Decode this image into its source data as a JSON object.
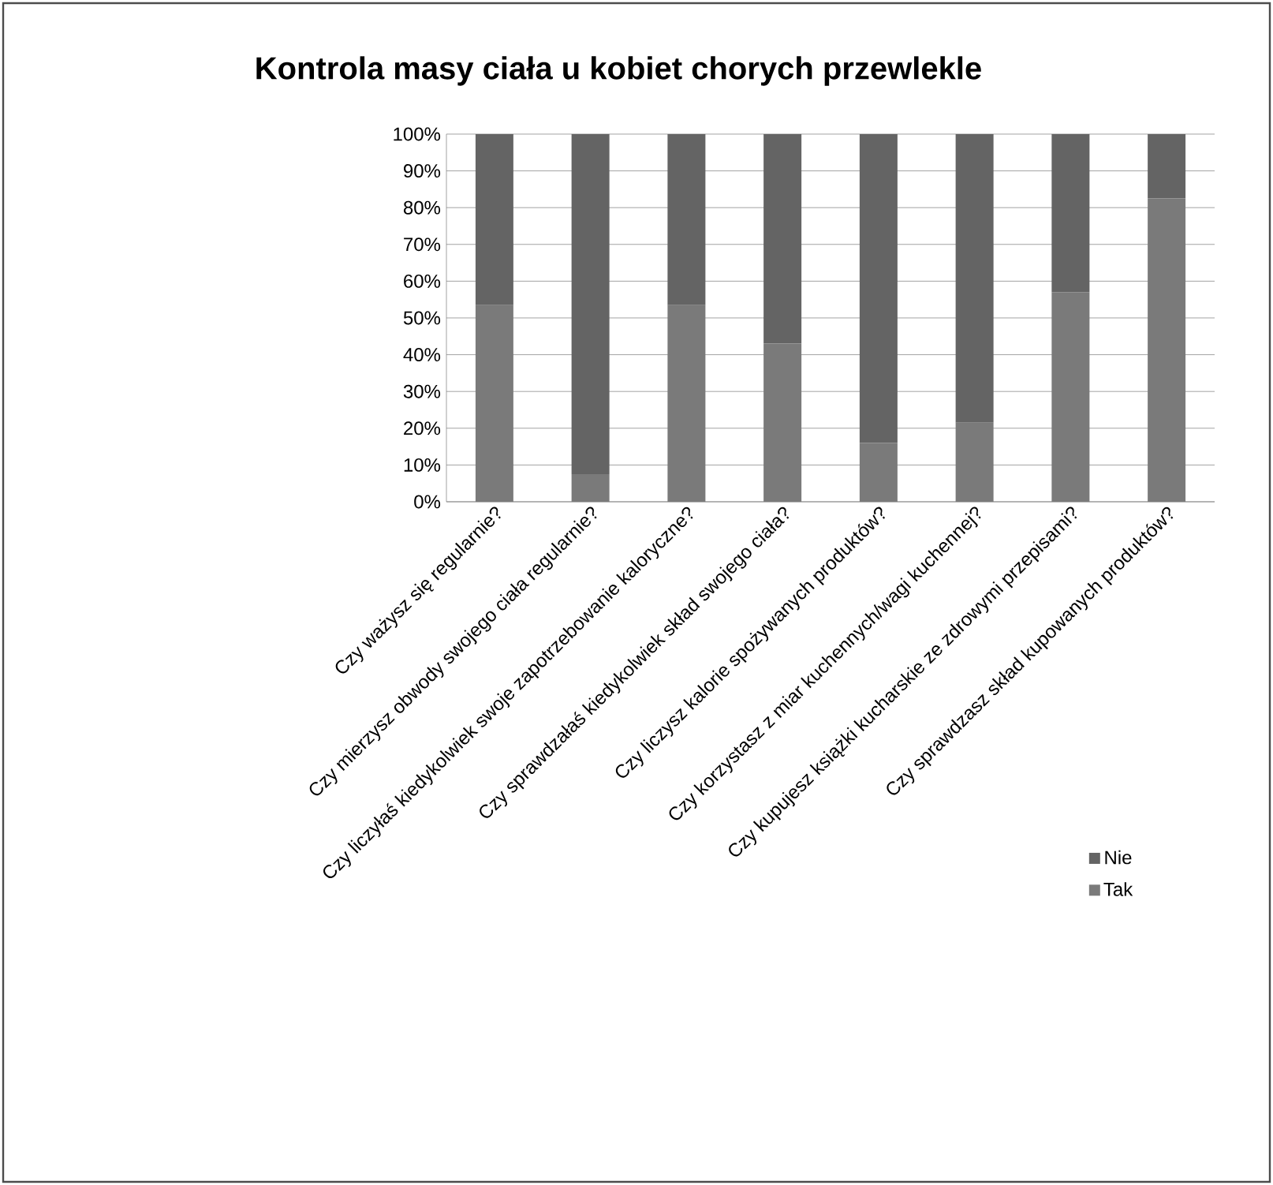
{
  "chart_data": {
    "type": "bar",
    "title": "Kontrola masy ciała u kobiet chorych przewlekle",
    "categories": [
      "Czy ważysz się regularnie?",
      "Czy mierzysz obwody swojego ciała regularnie?",
      "Czy liczyłaś kiedykolwiek swoje zapotrzebowanie kaloryczne?",
      "Czy sprawdzałaś kiedykolwiek skład swojego ciała?",
      "Czy liczysz kalorie spożywanych produktów?",
      "Czy korzystasz z miar kuchennych/wagi kuchennej?",
      "Czy kupujesz książki kucharskie ze zdrowymi przepisami?",
      "Czy sprawdzasz skład kupowanych produktów?"
    ],
    "series": [
      {
        "name": "Tak",
        "color": "#7a7a7a",
        "values": [
          53.5,
          7.5,
          53.5,
          43,
          16,
          21.5,
          57,
          82.5
        ]
      },
      {
        "name": "Nie",
        "color": "#646464",
        "values": [
          46.5,
          92.5,
          46.5,
          57,
          84,
          78.5,
          43,
          17.5
        ]
      }
    ],
    "stacked": true,
    "ylim": [
      0,
      100
    ],
    "yticks": [
      {
        "value": 0,
        "label": "0%"
      },
      {
        "value": 10,
        "label": "10%"
      },
      {
        "value": 20,
        "label": "20%"
      },
      {
        "value": 30,
        "label": "30%"
      },
      {
        "value": 40,
        "label": "40%"
      },
      {
        "value": 50,
        "label": "50%"
      },
      {
        "value": 60,
        "label": "60%"
      },
      {
        "value": 70,
        "label": "70%"
      },
      {
        "value": 80,
        "label": "80%"
      },
      {
        "value": 90,
        "label": "90%"
      },
      {
        "value": 100,
        "label": "100%"
      }
    ],
    "grid": "y",
    "legend": "right"
  }
}
